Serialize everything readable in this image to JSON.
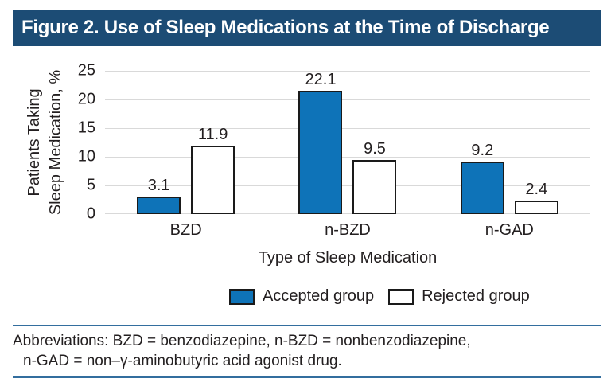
{
  "title": "Figure 2. Use of Sleep Medications at the Time of Discharge",
  "colors": {
    "title_bar_navy": "#1c4c75",
    "accepted_bar_blue": "#0e73b8",
    "rejected_bar_white": "#ffffff",
    "bar_border": "#1a1a1a",
    "gridline_gray": "#d9d9d9",
    "footer_rule_blue": "#336e9e"
  },
  "chart_data": {
    "type": "bar",
    "categories": [
      "BZD",
      "n-BZD",
      "n-GAD"
    ],
    "series": [
      {
        "name": "Accepted group",
        "values": [
          3.1,
          22.1,
          9.2
        ],
        "color": "#0e73b8"
      },
      {
        "name": "Rejected group",
        "values": [
          11.9,
          9.5,
          2.4
        ],
        "color": "#ffffff"
      }
    ],
    "title": "Figure 2. Use of Sleep Medications at the Time of Discharge",
    "xlabel": "Type of Sleep Medication",
    "ylabel": "Patients Taking Sleep Medication, %",
    "ylabel_lines": [
      "Patients Taking",
      "Sleep Medication, %"
    ],
    "ylim": [
      0,
      25
    ],
    "yticks": [
      0,
      5,
      10,
      15,
      20,
      25
    ],
    "grid": true,
    "legend_position": "bottom",
    "bar_value_labels": true
  },
  "footer": {
    "line1": "Abbreviations: BZD = benzodiazepine, n-BZD = nonbenzodiazepine,",
    "line2": "n-GAD = non–γ-aminobutyric acid agonist drug."
  }
}
